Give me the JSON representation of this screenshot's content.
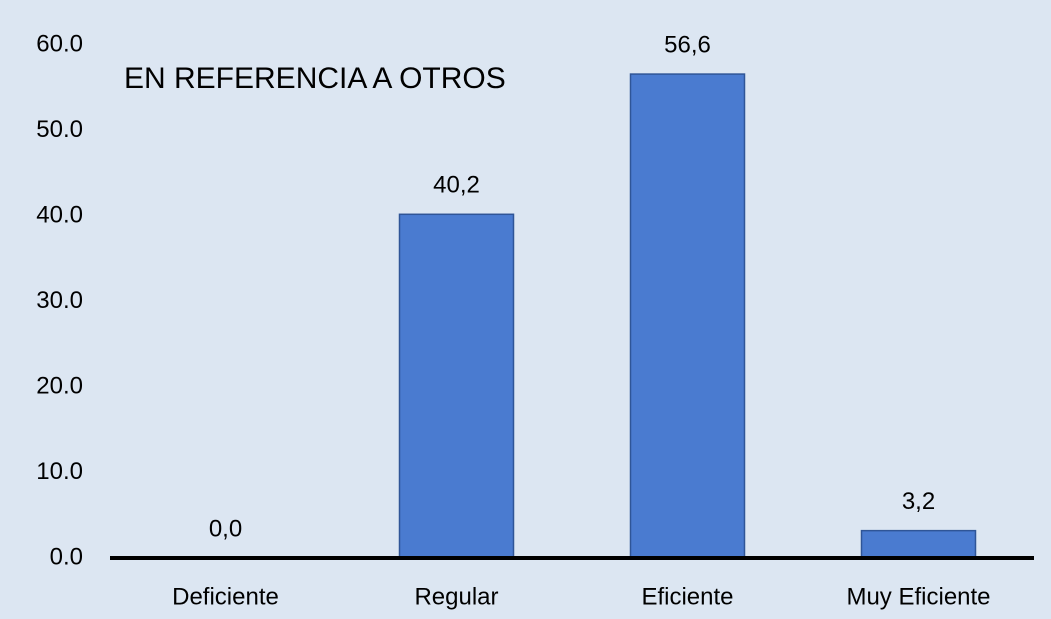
{
  "chart_data": {
    "type": "bar",
    "title": "EN REFERENCIA A OTROS",
    "categories": [
      "Deficiente",
      "Regular",
      "Eficiente",
      "Muy Eficiente"
    ],
    "values": [
      0,
      40.2,
      56.6,
      3.2
    ],
    "value_labels": [
      "0,0",
      "40,2",
      "56,6",
      "3,2"
    ],
    "color": "#4a7bd0",
    "ylim": [
      0,
      60
    ],
    "yticks": [
      {
        "value": 0,
        "label": "0.0"
      },
      {
        "value": 10,
        "label": "10.0"
      },
      {
        "value": 20,
        "label": "20.0"
      },
      {
        "value": 30,
        "label": "30.0"
      },
      {
        "value": 40,
        "label": "40.0"
      },
      {
        "value": 50,
        "label": "50.0"
      },
      {
        "value": 60,
        "label": "60.0"
      }
    ],
    "grid": false
  }
}
